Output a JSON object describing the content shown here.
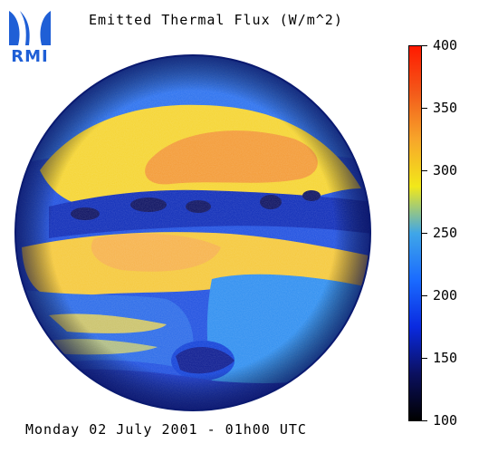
{
  "logo": {
    "text": "RMI",
    "color": "#1f5fd6"
  },
  "title": "Emitted Thermal Flux (W/m^2)",
  "footer": "Monday 02 July 2001 - 01h00 UTC",
  "colorbar": {
    "min": 100,
    "max": 400,
    "ticks": [
      "400",
      "350",
      "300",
      "250",
      "200",
      "150",
      "100"
    ],
    "tick_values": [
      400,
      350,
      300,
      250,
      200,
      150,
      100
    ],
    "colors": [
      "#000000",
      "#0b1060",
      "#0a2ae0",
      "#1a6bff",
      "#3fa6e8",
      "#f2e81a",
      "#f7a62a",
      "#f35a1a",
      "#ff1a00"
    ]
  },
  "map": {
    "image_type": "satellite full-disk thermal flux",
    "disk_edge_color": "#0a1a70",
    "palette": {
      "cold": "#0b1060",
      "cool": "#1e4fe0",
      "mid": "#2e8ef0",
      "warm": "#f5d430",
      "hot": "#f39a35"
    }
  }
}
